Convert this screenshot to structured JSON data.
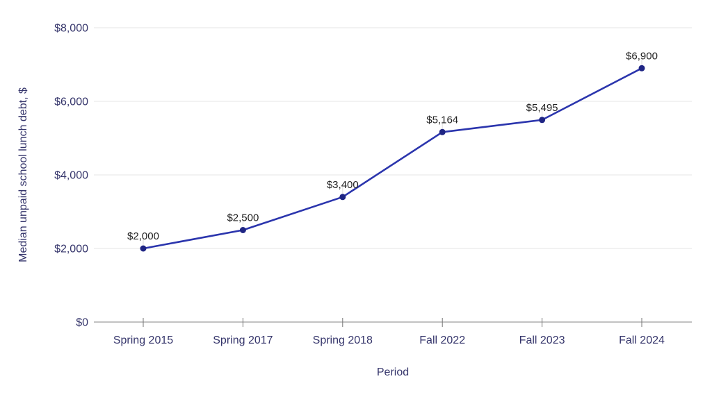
{
  "chart_data": {
    "type": "line",
    "title": "",
    "xlabel": "Period",
    "ylabel": "Median unpaid school lunch debt, $",
    "categories": [
      "Spring 2015",
      "Spring 2017",
      "Spring 2018",
      "Fall 2022",
      "Fall 2023",
      "Fall 2024"
    ],
    "series": [
      {
        "name": "Median unpaid school lunch debt",
        "values": [
          2000,
          2500,
          3400,
          5164,
          5495,
          6900
        ]
      }
    ],
    "point_labels": [
      "$2,000",
      "$2,500",
      "$3,400",
      "$5,164",
      "$5,495",
      "$6,900"
    ],
    "y_ticks": [
      {
        "value": 0,
        "label": "$0"
      },
      {
        "value": 2000,
        "label": "$2,000"
      },
      {
        "value": 4000,
        "label": "$4,000"
      },
      {
        "value": 6000,
        "label": "$6,000"
      },
      {
        "value": 8000,
        "label": "$8,000"
      }
    ],
    "ylim": [
      0,
      8000
    ],
    "grid": true,
    "legend": "none"
  },
  "colors": {
    "background": "#ffffff",
    "line": "#2b35ad",
    "marker": "#1f2584",
    "data_label": "#212121",
    "axis_text": "#35356b",
    "gridline": "#e6e6e6",
    "axis_line": "#9e9e9e",
    "tick_mark": "#757575",
    "label_stem": "#e3e3e3"
  }
}
